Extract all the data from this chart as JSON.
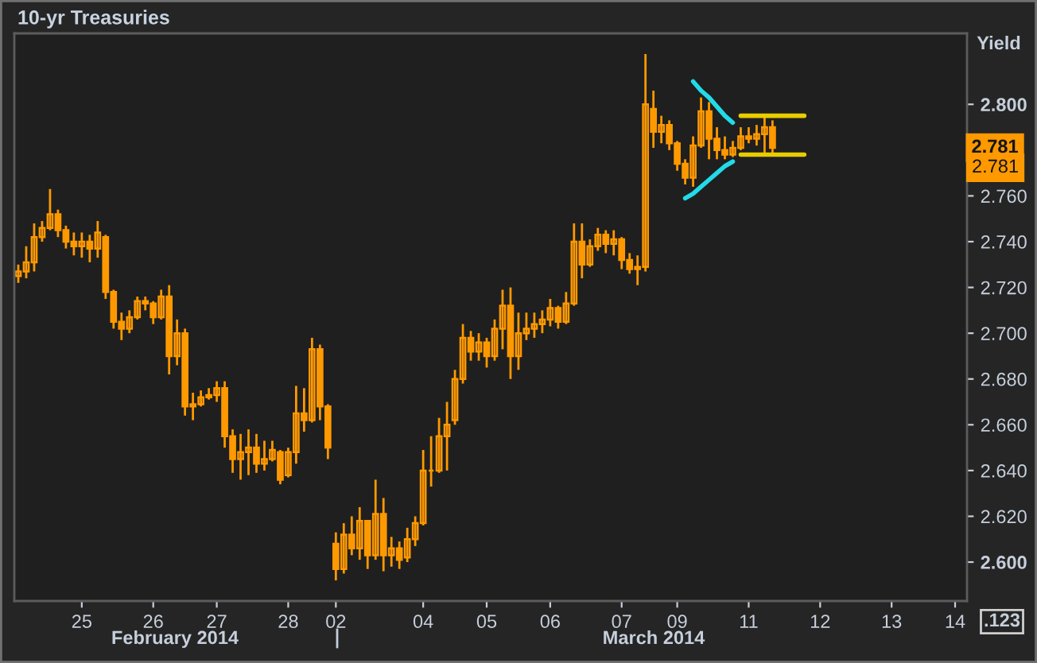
{
  "chart_data": {
    "type": "candlestick",
    "title": "10-yr Treasuries",
    "ylabel": "Yield",
    "color": "#ff9900",
    "categories": [
      null,
      null,
      null,
      null,
      null,
      null,
      null,
      null,
      "25",
      null,
      null,
      null,
      null,
      null,
      null,
      null,
      null,
      "26",
      null,
      null,
      null,
      null,
      null,
      null,
      null,
      "27",
      null,
      null,
      null,
      null,
      null,
      null,
      null,
      null,
      "28",
      null,
      null,
      null,
      null,
      null,
      "02",
      null,
      null,
      null,
      null,
      null,
      null,
      null,
      null,
      null,
      null,
      "04",
      null,
      null,
      null,
      null,
      null,
      null,
      null,
      "05",
      null,
      null,
      null,
      null,
      null,
      null,
      null,
      "06",
      null,
      null,
      null,
      null,
      null,
      null,
      null,
      null,
      "07",
      null,
      null,
      null,
      null,
      null,
      null,
      "09",
      null,
      null,
      null,
      null,
      null,
      null,
      null,
      null,
      "11",
      null,
      null,
      null,
      null,
      null,
      null,
      null,
      null,
      "12",
      null,
      null,
      null,
      null,
      null,
      null,
      null,
      null,
      "13",
      null,
      null,
      null,
      null,
      null,
      null,
      null,
      "14",
      null
    ],
    "ohlc": [
      [
        2.725,
        2.73,
        2.722,
        2.727
      ],
      [
        2.727,
        2.738,
        2.724,
        2.731
      ],
      [
        2.731,
        2.748,
        2.727,
        2.742
      ],
      [
        2.742,
        2.749,
        2.74,
        2.746
      ],
      [
        2.746,
        2.763,
        2.745,
        2.752
      ],
      [
        2.752,
        2.754,
        2.742,
        2.745
      ],
      [
        2.745,
        2.747,
        2.737,
        2.74
      ],
      [
        2.74,
        2.744,
        2.734,
        2.738
      ],
      [
        2.738,
        2.744,
        2.733,
        2.74
      ],
      [
        2.74,
        2.743,
        2.731,
        2.737
      ],
      [
        2.737,
        2.749,
        2.733,
        2.744
      ],
      [
        2.742,
        2.743,
        2.715,
        2.718
      ],
      [
        2.718,
        2.719,
        2.702,
        2.705
      ],
      [
        2.705,
        2.709,
        2.697,
        2.702
      ],
      [
        2.702,
        2.71,
        2.7,
        2.707
      ],
      [
        2.707,
        2.716,
        2.706,
        2.714
      ],
      [
        2.714,
        2.716,
        2.71,
        2.713
      ],
      [
        2.713,
        2.714,
        2.704,
        2.707
      ],
      [
        2.707,
        2.719,
        2.706,
        2.716
      ],
      [
        2.716,
        2.721,
        2.682,
        2.69
      ],
      [
        2.69,
        2.706,
        2.686,
        2.7
      ],
      [
        2.7,
        2.702,
        2.664,
        2.668
      ],
      [
        2.668,
        2.674,
        2.662,
        2.669
      ],
      [
        2.669,
        2.675,
        2.668,
        2.672
      ],
      [
        2.672,
        2.676,
        2.671,
        2.673
      ],
      [
        2.673,
        2.679,
        2.67,
        2.676
      ],
      [
        2.676,
        2.679,
        2.65,
        2.655
      ],
      [
        2.655,
        2.658,
        2.639,
        2.645
      ],
      [
        2.645,
        2.656,
        2.636,
        2.648
      ],
      [
        2.648,
        2.658,
        2.638,
        2.65
      ],
      [
        2.65,
        2.656,
        2.639,
        2.643
      ],
      [
        2.643,
        2.653,
        2.64,
        2.645
      ],
      [
        2.645,
        2.653,
        2.644,
        2.649
      ],
      [
        2.648,
        2.649,
        2.634,
        2.636
      ],
      [
        2.638,
        2.65,
        2.637,
        2.648
      ],
      [
        2.648,
        2.677,
        2.643,
        2.665
      ],
      [
        2.665,
        2.676,
        2.657,
        2.662
      ],
      [
        2.662,
        2.698,
        2.661,
        2.693
      ],
      [
        2.693,
        2.695,
        2.662,
        2.668
      ],
      [
        2.668,
        2.669,
        2.645,
        2.65
      ],
      [
        2.608,
        2.613,
        2.592,
        2.597
      ],
      [
        2.597,
        2.617,
        2.595,
        2.612
      ],
      [
        2.612,
        2.62,
        2.603,
        2.606
      ],
      [
        2.606,
        2.624,
        2.601,
        2.618
      ],
      [
        2.618,
        2.618,
        2.597,
        2.603
      ],
      [
        2.603,
        2.636,
        2.601,
        2.621
      ],
      [
        2.621,
        2.628,
        2.596,
        2.603
      ],
      [
        2.603,
        2.611,
        2.598,
        2.606
      ],
      [
        2.606,
        2.609,
        2.597,
        2.601
      ],
      [
        2.602,
        2.615,
        2.6,
        2.61
      ],
      [
        2.61,
        2.62,
        2.607,
        2.617
      ],
      [
        2.617,
        2.649,
        2.616,
        2.64
      ],
      [
        2.64,
        2.655,
        2.633,
        2.64
      ],
      [
        2.64,
        2.663,
        2.639,
        2.655
      ],
      [
        2.655,
        2.67,
        2.64,
        2.66
      ],
      [
        2.662,
        2.684,
        2.66,
        2.68
      ],
      [
        2.68,
        2.704,
        2.678,
        2.698
      ],
      [
        2.698,
        2.701,
        2.688,
        2.692
      ],
      [
        2.692,
        2.7,
        2.688,
        2.696
      ],
      [
        2.696,
        2.698,
        2.685,
        2.69
      ],
      [
        2.69,
        2.706,
        2.688,
        2.702
      ],
      [
        2.702,
        2.719,
        2.693,
        2.712
      ],
      [
        2.712,
        2.72,
        2.68,
        2.69
      ],
      [
        2.69,
        2.709,
        2.684,
        2.7
      ],
      [
        2.7,
        2.709,
        2.697,
        2.702
      ],
      [
        2.702,
        2.709,
        2.698,
        2.704
      ],
      [
        2.704,
        2.71,
        2.7,
        2.706
      ],
      [
        2.706,
        2.715,
        2.703,
        2.711
      ],
      [
        2.711,
        2.712,
        2.702,
        2.705
      ],
      [
        2.705,
        2.718,
        2.704,
        2.713
      ],
      [
        2.713,
        2.748,
        2.712,
        2.74
      ],
      [
        2.74,
        2.748,
        2.724,
        2.73
      ],
      [
        2.73,
        2.741,
        2.729,
        2.738
      ],
      [
        2.738,
        2.746,
        2.736,
        2.743
      ],
      [
        2.743,
        2.745,
        2.735,
        2.739
      ],
      [
        2.739,
        2.745,
        2.734,
        2.741
      ],
      [
        2.741,
        2.742,
        2.728,
        2.732
      ],
      [
        2.732,
        2.735,
        2.726,
        2.728
      ],
      [
        2.728,
        2.734,
        2.721,
        2.729
      ],
      [
        2.729,
        2.822,
        2.727,
        2.8
      ],
      [
        2.798,
        2.806,
        2.781,
        2.788
      ],
      [
        2.788,
        2.795,
        2.783,
        2.791
      ],
      [
        2.791,
        2.793,
        2.78,
        2.783
      ],
      [
        2.783,
        2.784,
        2.771,
        2.774
      ],
      [
        2.774,
        2.776,
        2.765,
        2.768
      ],
      [
        2.768,
        2.786,
        2.764,
        2.782
      ],
      [
        2.782,
        2.803,
        2.781,
        2.797
      ],
      [
        2.797,
        2.801,
        2.776,
        2.785
      ],
      [
        2.785,
        2.79,
        2.776,
        2.78
      ],
      [
        2.78,
        2.786,
        2.776,
        2.778
      ],
      [
        2.778,
        2.784,
        2.777,
        2.781
      ],
      [
        2.781,
        2.79,
        2.78,
        2.786
      ],
      [
        2.786,
        2.79,
        2.783,
        2.785
      ],
      [
        2.785,
        2.791,
        2.782,
        2.787
      ],
      [
        2.787,
        2.795,
        2.778,
        2.79
      ],
      [
        2.79,
        2.793,
        2.778,
        2.781
      ],
      null,
      null,
      null,
      null,
      null,
      null,
      null,
      null,
      null,
      null,
      null,
      null,
      null,
      null,
      null,
      null,
      null,
      null,
      null,
      null,
      null,
      null,
      null,
      null
    ],
    "series": [
      {
        "type": "line",
        "color": "#22dbe8",
        "values": [
          null,
          null,
          null,
          null,
          null,
          null,
          null,
          null,
          null,
          null,
          null,
          null,
          null,
          null,
          null,
          null,
          null,
          null,
          null,
          null,
          null,
          null,
          null,
          null,
          null,
          null,
          null,
          null,
          null,
          null,
          null,
          null,
          null,
          null,
          null,
          null,
          null,
          null,
          null,
          null,
          null,
          null,
          null,
          null,
          null,
          null,
          null,
          null,
          null,
          null,
          null,
          null,
          null,
          null,
          null,
          null,
          null,
          null,
          null,
          null,
          null,
          null,
          null,
          null,
          null,
          null,
          null,
          null,
          null,
          null,
          null,
          null,
          null,
          null,
          null,
          null,
          null,
          null,
          null,
          null,
          null,
          null,
          null,
          null,
          null,
          2.81,
          2.806,
          2.803,
          2.799,
          2.795,
          2.792,
          null,
          null,
          null,
          null,
          null,
          null,
          null,
          null,
          null,
          null,
          null,
          null,
          null,
          null,
          null,
          null,
          null,
          null,
          null,
          null,
          null,
          null,
          null,
          null,
          null,
          null,
          null,
          null,
          null
        ]
      },
      {
        "type": "line",
        "color": "#22dbe8",
        "values": [
          null,
          null,
          null,
          null,
          null,
          null,
          null,
          null,
          null,
          null,
          null,
          null,
          null,
          null,
          null,
          null,
          null,
          null,
          null,
          null,
          null,
          null,
          null,
          null,
          null,
          null,
          null,
          null,
          null,
          null,
          null,
          null,
          null,
          null,
          null,
          null,
          null,
          null,
          null,
          null,
          null,
          null,
          null,
          null,
          null,
          null,
          null,
          null,
          null,
          null,
          null,
          null,
          null,
          null,
          null,
          null,
          null,
          null,
          null,
          null,
          null,
          null,
          null,
          null,
          null,
          null,
          null,
          null,
          null,
          null,
          null,
          null,
          null,
          null,
          null,
          null,
          null,
          null,
          null,
          null,
          null,
          null,
          null,
          null,
          2.759,
          2.761,
          2.764,
          2.767,
          2.77,
          2.773,
          2.775,
          null,
          null,
          null,
          null,
          null,
          null,
          null,
          null,
          null,
          null,
          null,
          null,
          null,
          null,
          null,
          null,
          null,
          null,
          null,
          null,
          null,
          null,
          null,
          null,
          null,
          null,
          null,
          null,
          null
        ]
      },
      {
        "type": "line",
        "color": "#e8cc00",
        "values": [
          null,
          null,
          null,
          null,
          null,
          null,
          null,
          null,
          null,
          null,
          null,
          null,
          null,
          null,
          null,
          null,
          null,
          null,
          null,
          null,
          null,
          null,
          null,
          null,
          null,
          null,
          null,
          null,
          null,
          null,
          null,
          null,
          null,
          null,
          null,
          null,
          null,
          null,
          null,
          null,
          null,
          null,
          null,
          null,
          null,
          null,
          null,
          null,
          null,
          null,
          null,
          null,
          null,
          null,
          null,
          null,
          null,
          null,
          null,
          null,
          null,
          null,
          null,
          null,
          null,
          null,
          null,
          null,
          null,
          null,
          null,
          null,
          null,
          null,
          null,
          null,
          null,
          null,
          null,
          null,
          null,
          null,
          null,
          null,
          null,
          null,
          null,
          null,
          null,
          null,
          null,
          2.795,
          2.795,
          2.795,
          2.795,
          2.795,
          2.795,
          2.795,
          2.795,
          2.795,
          null,
          null,
          null,
          null,
          null,
          null,
          null,
          null,
          null,
          null,
          null,
          null,
          null,
          null,
          null,
          null,
          null,
          null,
          null,
          null
        ]
      },
      {
        "type": "line",
        "color": "#e8cc00",
        "values": [
          null,
          null,
          null,
          null,
          null,
          null,
          null,
          null,
          null,
          null,
          null,
          null,
          null,
          null,
          null,
          null,
          null,
          null,
          null,
          null,
          null,
          null,
          null,
          null,
          null,
          null,
          null,
          null,
          null,
          null,
          null,
          null,
          null,
          null,
          null,
          null,
          null,
          null,
          null,
          null,
          null,
          null,
          null,
          null,
          null,
          null,
          null,
          null,
          null,
          null,
          null,
          null,
          null,
          null,
          null,
          null,
          null,
          null,
          null,
          null,
          null,
          null,
          null,
          null,
          null,
          null,
          null,
          null,
          null,
          null,
          null,
          null,
          null,
          null,
          null,
          null,
          null,
          null,
          null,
          null,
          null,
          null,
          null,
          null,
          null,
          null,
          null,
          null,
          null,
          null,
          null,
          2.778,
          2.778,
          2.778,
          2.778,
          2.778,
          2.778,
          2.778,
          2.778,
          2.778,
          null,
          null,
          null,
          null,
          null,
          null,
          null,
          null,
          null,
          null,
          null,
          null,
          null,
          null,
          null,
          null,
          null,
          null,
          null,
          null
        ]
      }
    ],
    "ylim": [
      2.583,
      2.831
    ],
    "yticks": [
      {
        "value": 2.6,
        "label": "2.600"
      },
      {
        "value": 2.62,
        "label": "2.620"
      },
      {
        "value": 2.64,
        "label": "2.640"
      },
      {
        "value": 2.66,
        "label": "2.660"
      },
      {
        "value": 2.68,
        "label": "2.680"
      },
      {
        "value": 2.7,
        "label": "2.700"
      },
      {
        "value": 2.72,
        "label": "2.720"
      },
      {
        "value": 2.74,
        "label": "2.740"
      },
      {
        "value": 2.76,
        "label": "2.760"
      },
      {
        "value": 2.8,
        "label": "2.800"
      }
    ],
    "annotations": [
      "February 2014",
      "March 2014",
      {
        "text": "2.781",
        "y": 2.781
      },
      "2.781",
      ".123"
    ]
  }
}
